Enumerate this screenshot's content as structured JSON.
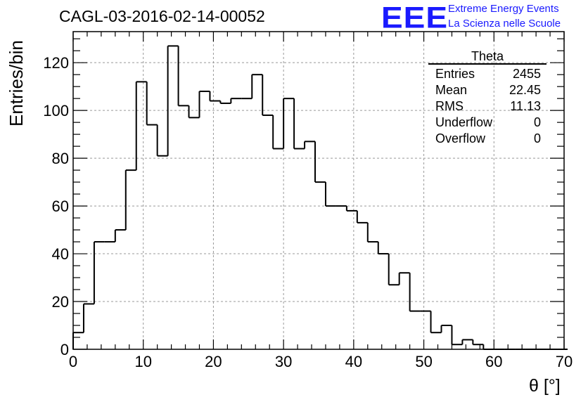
{
  "header": {
    "title": "CAGL-03-2016-02-14-00052",
    "logo_text": "EEE",
    "logo_line1": "Extreme Energy Events",
    "logo_line2": "La Scienza nelle Scuole"
  },
  "stats": {
    "title": "Theta",
    "rows": [
      {
        "label": "Entries",
        "value": "2455"
      },
      {
        "label": "Mean",
        "value": "22.45"
      },
      {
        "label": "RMS",
        "value": "11.13"
      },
      {
        "label": "Underflow",
        "value": "0"
      },
      {
        "label": "Overflow",
        "value": "0"
      }
    ]
  },
  "colors": {
    "line": "#000000",
    "grid": "#999999",
    "logo": "#1a1aff"
  },
  "chart_data": {
    "type": "histogram",
    "xlabel": "θ [°]",
    "ylabel": "Entries/bin",
    "xlim": [
      0,
      70
    ],
    "ylim": [
      0,
      133
    ],
    "bin_width": 1.5,
    "x_ticks": [
      0,
      10,
      20,
      30,
      40,
      50,
      60,
      70
    ],
    "y_ticks": [
      0,
      20,
      40,
      60,
      80,
      100,
      120
    ],
    "grid": true,
    "bin_edges_start": 0,
    "values": [
      7,
      19,
      45,
      45,
      50,
      75,
      112,
      94,
      81,
      127,
      102,
      97,
      108,
      104,
      103,
      105,
      105,
      115,
      98,
      84,
      105,
      84,
      87,
      70,
      60,
      60,
      58,
      53,
      45,
      40,
      27,
      32,
      16,
      16,
      7,
      10,
      2,
      4,
      2,
      0,
      0,
      0,
      0,
      0,
      0,
      0,
      0
    ]
  }
}
